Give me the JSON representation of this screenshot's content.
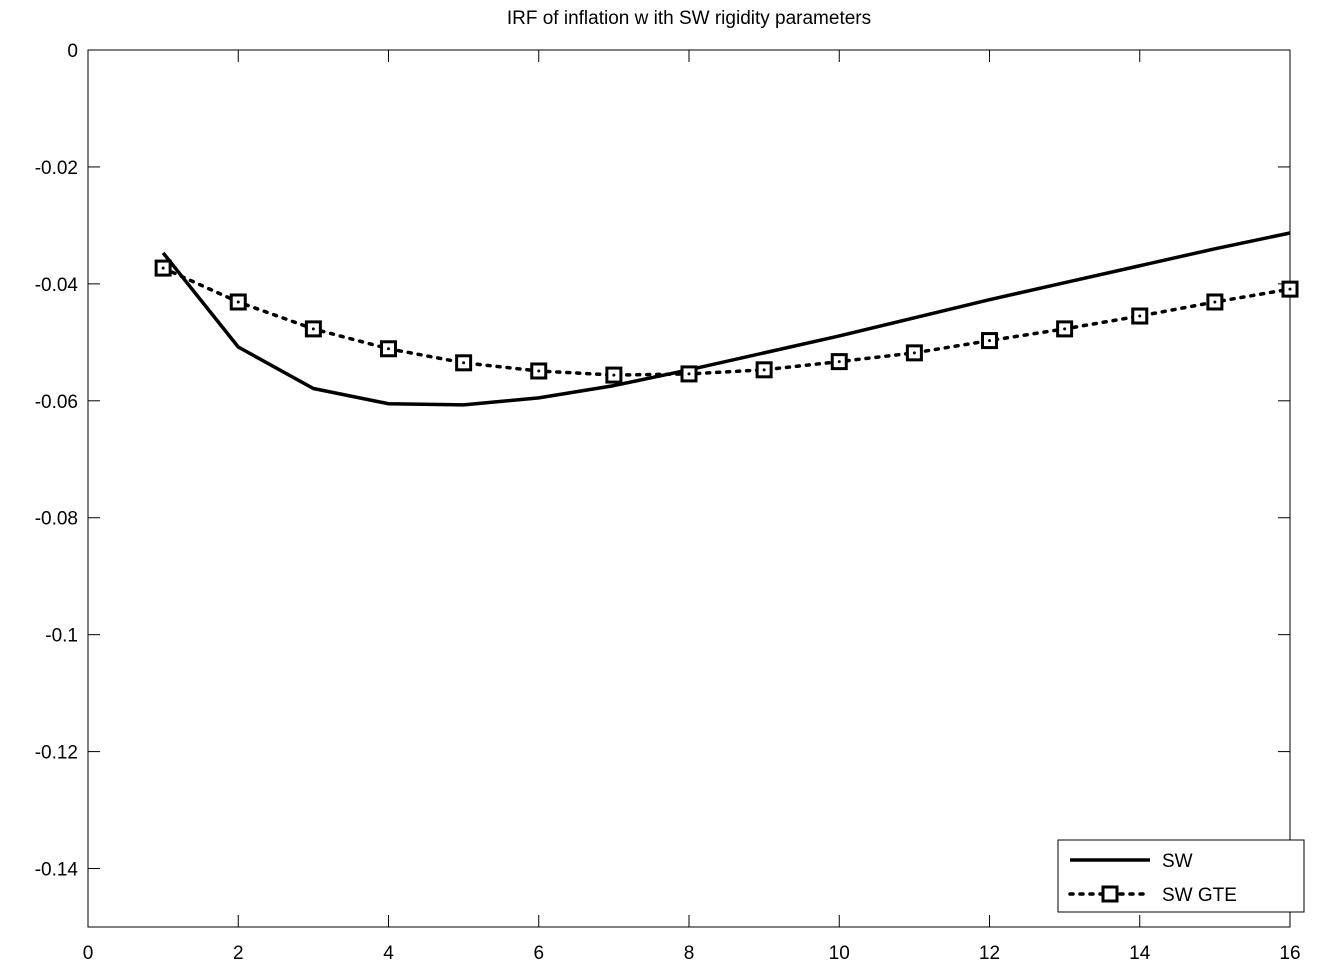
{
  "chart_data": {
    "type": "line",
    "title": "IRF of inflation w ith SW rigidity parameters",
    "x": [
      1,
      2,
      3,
      4,
      5,
      6,
      7,
      8,
      9,
      10,
      11,
      12,
      13,
      14,
      15,
      16
    ],
    "series": [
      {
        "name": "SW",
        "color": "#000000",
        "style": "solid",
        "marker": "none",
        "values": [
          -0.0347,
          -0.0508,
          -0.0579,
          -0.0605,
          -0.0607,
          -0.0595,
          -0.0574,
          -0.0547,
          -0.0518,
          -0.0489,
          -0.0458,
          -0.0427,
          -0.0398,
          -0.0369,
          -0.034,
          -0.0313
        ]
      },
      {
        "name": "SW GTE",
        "color": "#000000",
        "style": "dotted",
        "marker": "square",
        "values": [
          -0.0373,
          -0.0431,
          -0.0477,
          -0.0511,
          -0.0535,
          -0.0549,
          -0.0556,
          -0.0554,
          -0.0547,
          -0.0533,
          -0.0518,
          -0.0497,
          -0.0477,
          -0.0455,
          -0.0431,
          -0.0409
        ]
      }
    ],
    "xlim": [
      0,
      16
    ],
    "xticks": [
      0,
      2,
      4,
      6,
      8,
      10,
      12,
      14,
      16
    ],
    "ylim": [
      -0.15,
      0
    ],
    "yticks": [
      0,
      -0.02,
      -0.04,
      -0.06,
      -0.08,
      -0.1,
      -0.12,
      -0.14
    ],
    "grid": false,
    "legend": "lower right"
  }
}
